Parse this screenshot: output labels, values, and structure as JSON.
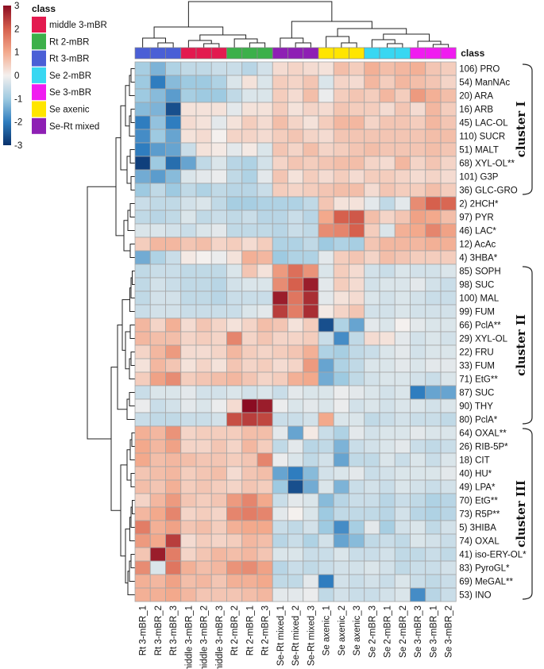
{
  "chart_data": {
    "type": "heatmap",
    "colorbar": {
      "ticks": [
        3,
        2,
        1,
        0,
        -1,
        -2,
        -3
      ],
      "range": [
        -3,
        3
      ],
      "low_color": "#1f5fa8",
      "mid_color": "#f7f7f7",
      "high_color": "#b2182b"
    },
    "legend": {
      "title": "class",
      "entries": [
        {
          "name": "middle 3-mBR",
          "color": "#e31a4f"
        },
        {
          "name": "Rt 2-mBR",
          "color": "#3cb04a"
        },
        {
          "name": "Rt 3-mBR",
          "color": "#4a5fd6"
        },
        {
          "name": "Se 2-mBR",
          "color": "#38d7f2"
        },
        {
          "name": "Se 3-mBR",
          "color": "#f01cf0"
        },
        {
          "name": "Se axenic",
          "color": "#ffe500"
        },
        {
          "name": "Se-Rt mixed",
          "color": "#8e1fb4"
        }
      ]
    },
    "class_row_label": "class",
    "columns": [
      "Rt 3-mBR_1",
      "Rt 3-mBR_2",
      "Rt 3-mBR_3",
      "middle 3-mBR_1",
      "middle 3-mBR_2",
      "middle 3-mBR_3",
      "Rt 2-mBR_2",
      "Rt 2-mBR_1",
      "Rt 2-mBR_3",
      "Se-Rt mixed_1",
      "Se-Rt mixed_2",
      "Se-Rt mixed_3",
      "Se axenic_1",
      "Se axenic_2",
      "Se axenic_3",
      "Se 2-mBR_3",
      "Se 2-mBR_1",
      "Se 2-mBR_2",
      "Se 3-mBR_3",
      "Se 3-mBR_1",
      "Se 3-mBR_2"
    ],
    "column_classes": [
      2,
      2,
      2,
      0,
      0,
      0,
      1,
      1,
      1,
      6,
      6,
      6,
      5,
      5,
      5,
      3,
      3,
      3,
      4,
      4,
      4
    ],
    "rows": [
      "106) PRO",
      "54) ManNAc",
      "20) ARA",
      "16) ARB",
      "45) LAC-OL",
      "110) SUCR",
      "51) MALT",
      "68) XYL-OL**",
      "101) G3P",
      "36) GLC-GRO",
      "2) 2HCH*",
      "97) PYR",
      "46) LAC*",
      "12) AcAc",
      "4) 3HBA*",
      "85) SOPH",
      "98) SUC",
      "100) MAL",
      "99) FUM",
      "66) PclA**",
      "29) XYL-OL",
      "22) FRU",
      "33) FUM",
      "71) EtG**",
      "87) SUC",
      "90) THY",
      "80) PclA*",
      "64) OXAL**",
      "26) RIB-5P*",
      "18) CIT",
      "40) HU*",
      "49) LPA*",
      "70) EtG**",
      "73) R5P**",
      "5) 3HIBA",
      "74) OXAL",
      "41) iso-ERY-OL*",
      "83) PyroGL*",
      "69) MeGAL**",
      "53) INO"
    ],
    "values": [
      [
        -0.9,
        -1.3,
        -0.8,
        -0.6,
        -0.6,
        -0.5,
        -0.5,
        -0.7,
        -0.4,
        0.3,
        0.4,
        0.3,
        0.2,
        0.7,
        0.5,
        0.9,
        0.7,
        0.8,
        0.9,
        0.6,
        0.5
      ],
      [
        -1.0,
        -2.0,
        -1.2,
        -1.0,
        -1.0,
        -0.8,
        -0.3,
        0.2,
        -0.3,
        0.5,
        0.4,
        0.6,
        -0.3,
        0.4,
        0.3,
        0.8,
        0.5,
        0.8,
        0.7,
        0.6,
        0.4
      ],
      [
        -1.0,
        -1.2,
        -1.6,
        -0.9,
        -1.0,
        -1.0,
        -0.6,
        -0.3,
        -0.3,
        0.5,
        0.3,
        0.7,
        -0.1,
        0.5,
        0.6,
        0.5,
        0.8,
        0.5,
        1.2,
        0.9,
        0.7
      ],
      [
        -1.2,
        -1.3,
        -2.6,
        0.2,
        0.2,
        0.2,
        -0.2,
        0.2,
        0.2,
        0.5,
        0.2,
        0.4,
        0.3,
        0.6,
        0.5,
        0.5,
        0.3,
        0.6,
        0.3,
        0.8,
        0.5
      ],
      [
        -2.0,
        -1.1,
        -2.0,
        0.3,
        0.2,
        -0.2,
        0.2,
        0.5,
        0.3,
        0.7,
        0.4,
        0.2,
        0.5,
        0.8,
        0.8,
        0.4,
        0.6,
        0.6,
        0.5,
        0.8,
        0.6
      ],
      [
        -1.8,
        -1.0,
        -1.5,
        0.2,
        0.3,
        0.0,
        0.4,
        0.4,
        0.3,
        0.5,
        0.6,
        0.4,
        0.3,
        0.6,
        0.6,
        0.6,
        0.6,
        0.6,
        0.6,
        0.7,
        0.7
      ],
      [
        -2.0,
        -1.6,
        -1.5,
        -0.5,
        0.2,
        0.1,
        -0.2,
        0.1,
        -0.3,
        0.6,
        0.4,
        0.7,
        0.4,
        0.5,
        0.6,
        0.7,
        0.6,
        0.6,
        0.6,
        0.7,
        0.6
      ],
      [
        -2.8,
        -1.0,
        -2.2,
        -1.5,
        -0.6,
        -0.3,
        -0.7,
        -0.8,
        -0.4,
        0.4,
        0.6,
        0.5,
        0.6,
        0.7,
        0.7,
        0.4,
        0.3,
        0.8,
        0.4,
        0.6,
        0.4
      ],
      [
        -1.4,
        -1.6,
        -1.2,
        -0.3,
        -0.2,
        -0.1,
        -0.6,
        -0.8,
        -0.2,
        0.6,
        0.2,
        0.5,
        0.3,
        0.5,
        0.3,
        0.5,
        0.5,
        0.4,
        0.3,
        0.4,
        0.3
      ],
      [
        -1.0,
        -0.6,
        -1.0,
        -0.6,
        -0.8,
        -0.6,
        -0.7,
        -0.7,
        -0.5,
        0.5,
        0.4,
        0.5,
        0.6,
        0.7,
        0.7,
        0.3,
        0.6,
        0.5,
        0.5,
        0.7,
        0.5
      ],
      [
        -0.5,
        -0.6,
        -0.6,
        -0.4,
        -0.3,
        -0.6,
        -0.9,
        -0.9,
        -0.8,
        -0.8,
        -0.8,
        -0.6,
        0.6,
        0.2,
        0.2,
        -0.2,
        -0.6,
        -0.2,
        1.4,
        2.0,
        1.9
      ],
      [
        -0.6,
        -0.7,
        -0.6,
        -0.3,
        -0.6,
        -0.5,
        -0.6,
        -0.5,
        -0.7,
        -0.7,
        -0.5,
        -0.7,
        1.0,
        2.0,
        2.1,
        0.7,
        0.4,
        0.6,
        1.1,
        1.0,
        0.7
      ],
      [
        -0.3,
        -0.3,
        -0.4,
        -0.5,
        -0.3,
        -0.2,
        -0.6,
        -0.6,
        -0.6,
        -0.7,
        -0.5,
        -0.6,
        1.4,
        1.5,
        2.0,
        0.5,
        -0.3,
        0.9,
        1.0,
        1.5,
        1.1
      ],
      [
        0.5,
        0.8,
        0.8,
        0.6,
        0.7,
        0.4,
        0.5,
        0.3,
        0.5,
        -0.8,
        -0.8,
        -0.6,
        -1.0,
        -0.8,
        -0.9,
        0.6,
        0.8,
        0.8,
        0.8,
        0.9,
        0.9
      ],
      [
        -1.4,
        -0.8,
        -0.5,
        0.1,
        0.0,
        -0.1,
        0.2,
        0.9,
        0.8,
        -1.0,
        -0.8,
        -0.8,
        -0.2,
        0.5,
        0.6,
        0.4,
        0.7,
        0.6,
        0.5,
        0.5,
        0.5
      ],
      [
        -0.6,
        -0.5,
        -0.5,
        -0.6,
        -0.6,
        -0.6,
        -0.3,
        0.6,
        0.2,
        1.2,
        1.8,
        1.3,
        -0.3,
        0.5,
        0.3,
        -0.4,
        -0.5,
        -0.3,
        -0.4,
        -0.4,
        -0.3
      ],
      [
        -0.6,
        -0.4,
        -0.5,
        -0.6,
        -0.6,
        -0.7,
        -0.4,
        -0.3,
        -0.3,
        1.4,
        2.0,
        2.8,
        -0.2,
        0.5,
        0.3,
        -0.4,
        -0.3,
        -0.3,
        -0.2,
        -0.4,
        -0.5
      ],
      [
        -0.6,
        -0.4,
        -0.4,
        -0.6,
        -0.6,
        -0.7,
        -0.5,
        -0.5,
        -0.5,
        2.8,
        1.7,
        2.6,
        -0.2,
        0.2,
        0.3,
        -0.3,
        -0.4,
        -0.3,
        -0.4,
        -0.5,
        -0.5
      ],
      [
        -0.5,
        -0.4,
        -0.4,
        -0.5,
        -0.5,
        -0.5,
        -0.5,
        -0.3,
        -0.2,
        2.4,
        1.6,
        2.6,
        0.1,
        0.4,
        0.6,
        -0.4,
        -0.4,
        -0.3,
        -0.4,
        -0.4,
        -0.4
      ],
      [
        0.8,
        0.4,
        0.9,
        0.3,
        0.6,
        0.4,
        0.2,
        0.4,
        0.7,
        0.6,
        0.2,
        0.5,
        -2.6,
        -0.8,
        -1.5,
        -0.2,
        -0.3,
        0.0,
        -0.2,
        -0.3,
        -0.3
      ],
      [
        0.8,
        0.7,
        0.7,
        0.4,
        0.5,
        0.4,
        1.5,
        0.4,
        0.6,
        0.4,
        0.4,
        0.5,
        -0.5,
        -1.8,
        -0.6,
        0.3,
        0.2,
        -0.2,
        -0.4,
        -0.3,
        -0.4
      ],
      [
        0.4,
        0.8,
        1.2,
        0.3,
        0.3,
        0.4,
        0.8,
        0.5,
        0.4,
        0.5,
        0.6,
        0.9,
        -0.8,
        -0.9,
        -0.6,
        -0.5,
        -0.3,
        -0.2,
        -0.4,
        -0.3,
        -0.3
      ],
      [
        0.2,
        0.8,
        0.6,
        0.2,
        0.4,
        0.2,
        0.6,
        0.4,
        0.5,
        0.3,
        0.4,
        1.2,
        -1.5,
        -0.8,
        -0.6,
        -0.3,
        -0.3,
        -0.2,
        -0.3,
        -0.2,
        -0.2
      ],
      [
        0.5,
        1.1,
        1.4,
        0.5,
        0.6,
        0.7,
        0.8,
        0.6,
        0.4,
        0.5,
        0.9,
        1.0,
        -1.4,
        -1.0,
        -0.6,
        -0.4,
        -0.3,
        -0.3,
        -0.4,
        -0.5,
        -0.3
      ],
      [
        -0.5,
        -0.3,
        -0.3,
        -0.2,
        -0.4,
        -0.4,
        -0.3,
        -0.4,
        -0.3,
        -0.5,
        -0.2,
        -0.3,
        -0.3,
        -0.1,
        -0.2,
        -0.3,
        -0.4,
        -0.3,
        -2.0,
        -1.5,
        -1.5
      ],
      [
        -0.1,
        -0.5,
        -0.4,
        -0.2,
        -0.3,
        -0.1,
        0.3,
        3.0,
        2.8,
        -0.1,
        -0.3,
        -0.2,
        -0.3,
        -0.1,
        -0.4,
        -0.3,
        -0.4,
        -0.3,
        -0.3,
        -0.4,
        -0.3
      ],
      [
        -0.5,
        -0.6,
        -0.6,
        -0.5,
        -0.5,
        -0.4,
        2.2,
        2.4,
        2.3,
        -0.5,
        -0.5,
        -0.4,
        1.0,
        -0.3,
        -0.3,
        -0.6,
        -0.5,
        -0.4,
        -0.5,
        -0.5,
        -0.6
      ],
      [
        0.9,
        0.8,
        1.3,
        0.4,
        0.5,
        0.5,
        0.5,
        0.7,
        0.7,
        -0.2,
        -1.5,
        0.1,
        -0.5,
        -0.8,
        -0.2,
        -0.4,
        -0.3,
        -0.3,
        -0.2,
        -0.3,
        -0.3
      ],
      [
        1.0,
        0.8,
        1.1,
        0.4,
        0.4,
        0.6,
        0.4,
        0.8,
        0.5,
        -0.6,
        -0.2,
        -0.7,
        -0.6,
        -1.3,
        -0.5,
        -0.4,
        -0.3,
        -0.2,
        -0.5,
        -0.6,
        -0.5
      ],
      [
        1.0,
        0.7,
        0.8,
        0.7,
        0.6,
        0.6,
        0.5,
        0.6,
        1.5,
        -0.1,
        -0.3,
        -0.6,
        -0.4,
        -1.5,
        -0.6,
        -0.6,
        -0.3,
        -0.5,
        -0.3,
        -0.5,
        -0.3
      ],
      [
        0.6,
        0.7,
        0.8,
        0.5,
        0.6,
        0.7,
        0.3,
        0.6,
        0.7,
        -1.5,
        -2.0,
        -1.2,
        -0.4,
        -0.3,
        -0.2,
        -0.5,
        -0.4,
        -0.3,
        -0.3,
        -0.3,
        -0.2
      ],
      [
        0.7,
        0.6,
        0.9,
        0.5,
        0.6,
        0.5,
        0.4,
        0.6,
        0.5,
        -1.0,
        -2.6,
        -1.4,
        -0.3,
        -1.3,
        -0.5,
        -0.4,
        -0.5,
        -0.3,
        -0.4,
        -0.5,
        -0.4
      ],
      [
        0.4,
        0.8,
        1.2,
        0.6,
        0.5,
        0.6,
        1.2,
        1.5,
        1.0,
        -0.5,
        -0.2,
        -0.3,
        -1.2,
        -0.7,
        -0.5,
        -0.5,
        -0.7,
        -0.5,
        -0.6,
        -0.8,
        -0.7
      ],
      [
        0.8,
        1.0,
        1.5,
        0.4,
        0.5,
        0.4,
        1.5,
        1.6,
        1.5,
        -0.2,
        0.0,
        -0.3,
        -1.0,
        -0.6,
        -0.6,
        -0.6,
        -0.7,
        -0.4,
        -0.7,
        -0.8,
        -0.7
      ],
      [
        1.6,
        0.9,
        1.1,
        0.6,
        0.7,
        0.5,
        0.9,
        1.0,
        1.0,
        -0.5,
        -0.6,
        -0.4,
        -1.0,
        -1.8,
        -0.9,
        -0.2,
        -0.9,
        -0.4,
        -0.3,
        -0.6,
        -0.4
      ],
      [
        1.2,
        1.0,
        2.4,
        0.3,
        0.5,
        0.4,
        0.5,
        0.8,
        0.7,
        -0.7,
        -0.5,
        -0.8,
        -0.4,
        -1.5,
        -1.2,
        -0.6,
        -0.5,
        -0.6,
        -0.3,
        -0.4,
        -0.5
      ],
      [
        0.6,
        2.8,
        1.6,
        0.4,
        0.6,
        0.8,
        0.7,
        0.8,
        0.6,
        -0.3,
        -0.3,
        -0.5,
        -0.5,
        -0.3,
        -0.5,
        -0.5,
        -0.4,
        -0.6,
        -0.6,
        -0.5,
        -0.6
      ],
      [
        1.4,
        -0.3,
        1.7,
        0.9,
        0.7,
        0.8,
        1.3,
        1.4,
        1.1,
        -0.7,
        -0.5,
        -0.6,
        -0.5,
        -0.4,
        -0.4,
        -0.3,
        -0.4,
        -0.6,
        -0.5,
        -0.5,
        -0.4
      ],
      [
        0.9,
        0.8,
        1.1,
        0.7,
        0.8,
        0.6,
        0.9,
        0.9,
        1.0,
        -0.6,
        -0.6,
        -0.2,
        -2.0,
        -0.4,
        -0.5,
        -0.4,
        -0.5,
        -0.3,
        -0.5,
        -0.6,
        -0.5
      ],
      [
        0.9,
        0.9,
        1.0,
        0.8,
        0.6,
        0.6,
        0.6,
        0.7,
        0.8,
        -0.2,
        -0.2,
        -0.1,
        -0.6,
        -0.4,
        -0.5,
        -0.5,
        -0.4,
        -0.3,
        -1.8,
        -0.7,
        -0.5
      ]
    ],
    "clusters": [
      {
        "label": "cluster I",
        "first_row": 0,
        "last_row": 9
      },
      {
        "label": "cluster II",
        "first_row": 15,
        "last_row": 26
      },
      {
        "label": "cluster III",
        "first_row": 27,
        "last_row": 39
      }
    ]
  }
}
